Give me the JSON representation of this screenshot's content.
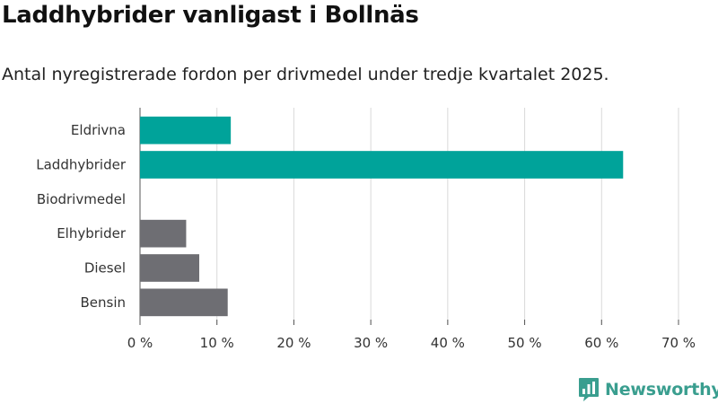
{
  "title": "Laddhybrider vanligast i Bollnäs",
  "subtitle": "Antal nyregistrerade fordon per drivmedel under tredje kvartalet 2025.",
  "brand": {
    "name": "Newsworthy",
    "color": "#3a9e8f"
  },
  "chart_data": {
    "type": "bar",
    "orientation": "horizontal",
    "categories": [
      "Eldrivna",
      "Laddhybrider",
      "Biodrivmedel",
      "Elhybrider",
      "Diesel",
      "Bensin"
    ],
    "values": [
      11.8,
      62.8,
      0,
      6.0,
      7.7,
      11.4
    ],
    "colors": [
      "#00a39a",
      "#00a39a",
      "#00a39a",
      "#6e6e73",
      "#6e6e73",
      "#6e6e73"
    ],
    "xlim": [
      0,
      70
    ],
    "xticks": [
      0,
      10,
      20,
      30,
      40,
      50,
      60,
      70
    ],
    "xtick_labels": [
      "0 %",
      "10 %",
      "20 %",
      "30 %",
      "40 %",
      "50 %",
      "60 %",
      "70 %"
    ],
    "grid": "vertical",
    "xlabel": "",
    "ylabel": ""
  }
}
